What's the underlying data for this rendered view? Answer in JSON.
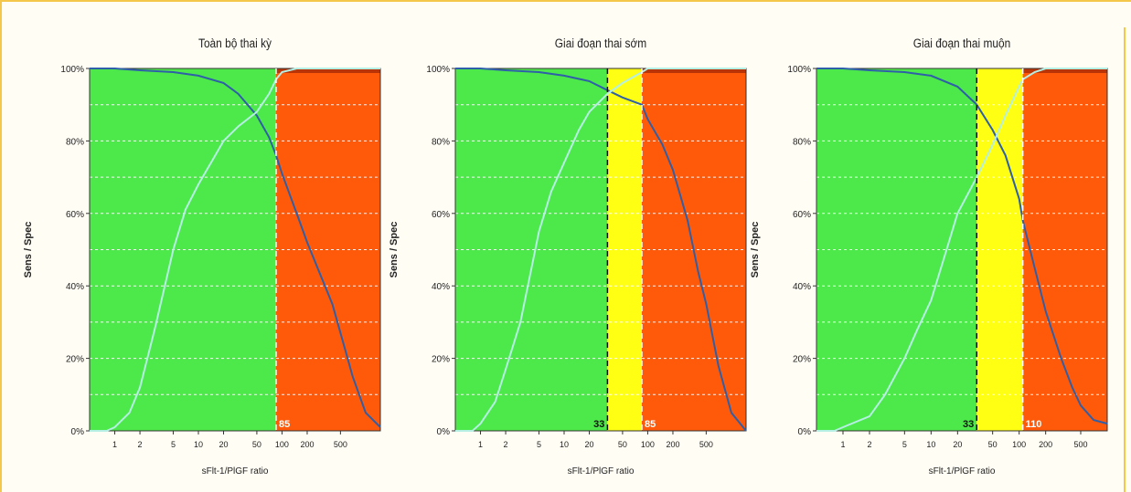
{
  "chart_data": [
    {
      "type": "line",
      "title": "Toàn bộ thai kỳ",
      "xlabel": "sFlt-1/PlGF ratio",
      "ylabel": "Sens / Spec",
      "x_scale": "log",
      "xlim": [
        0.5,
        1500
      ],
      "ylim": [
        0,
        100
      ],
      "x_ticks": [
        "1",
        "2",
        "5",
        "10",
        "20",
        "50",
        "100",
        "200",
        "500"
      ],
      "y_ticks": [
        "0%",
        "20%",
        "40%",
        "60%",
        "80%",
        "100%"
      ],
      "grid": true,
      "cutoffs": [
        {
          "value": 85,
          "label": "85"
        }
      ],
      "zones": [
        {
          "from": 0.5,
          "to": 85,
          "color": "#4de84a"
        },
        {
          "from": 85,
          "to": 1500,
          "color": "#ff5a0a"
        }
      ],
      "series": [
        {
          "color": "#2f5fa8",
          "x": [
            0.5,
            1,
            2,
            5,
            10,
            20,
            30,
            50,
            70,
            85,
            100,
            150,
            200,
            300,
            400,
            500,
            700,
            1000,
            1500
          ],
          "y": [
            100,
            100,
            99.5,
            99,
            98,
            96,
            93,
            87,
            81,
            76,
            71,
            60,
            52,
            42,
            35,
            27,
            15,
            5,
            1
          ]
        },
        {
          "color": "#b5efe4",
          "x": [
            0.5,
            0.8,
            1,
            1.5,
            2,
            3,
            5,
            7,
            10,
            15,
            20,
            30,
            50,
            70,
            85,
            100,
            150,
            200,
            500,
            1500
          ],
          "y": [
            0,
            0,
            1,
            5,
            12,
            28,
            50,
            61,
            68,
            75,
            80,
            84,
            88,
            93,
            97,
            99,
            100,
            100,
            100,
            100
          ]
        }
      ]
    },
    {
      "type": "line",
      "title": "Giai đoạn thai sớm",
      "xlabel": "sFlt-1/PlGF ratio",
      "ylabel": "Sens / Spec",
      "x_scale": "log",
      "xlim": [
        0.5,
        1500
      ],
      "ylim": [
        0,
        100
      ],
      "x_ticks": [
        "1",
        "2",
        "5",
        "10",
        "20",
        "50",
        "100",
        "200",
        "500"
      ],
      "y_ticks": [
        "0%",
        "20%",
        "40%",
        "60%",
        "80%",
        "100%"
      ],
      "grid": true,
      "cutoffs": [
        {
          "value": 33,
          "label": "33"
        },
        {
          "value": 85,
          "label": "85"
        }
      ],
      "zones": [
        {
          "from": 0.5,
          "to": 33,
          "color": "#4de84a"
        },
        {
          "from": 33,
          "to": 85,
          "color": "#ffff14"
        },
        {
          "from": 85,
          "to": 1500,
          "color": "#ff5a0a"
        }
      ],
      "series": [
        {
          "color": "#2f5fa8",
          "x": [
            0.5,
            1,
            2,
            5,
            10,
            20,
            33,
            50,
            85,
            100,
            150,
            200,
            300,
            400,
            500,
            700,
            1000,
            1500
          ],
          "y": [
            100,
            100,
            99.5,
            99,
            98,
            96.5,
            94,
            92,
            90,
            86,
            79,
            72,
            58,
            44,
            35,
            18,
            5,
            0
          ]
        },
        {
          "color": "#b5efe4",
          "x": [
            0.5,
            0.8,
            1,
            1.5,
            2,
            3,
            5,
            7,
            10,
            15,
            20,
            33,
            50,
            85,
            100,
            150,
            200,
            1500
          ],
          "y": [
            0,
            0,
            2,
            8,
            17,
            30,
            55,
            66,
            74,
            83,
            88,
            93,
            96,
            99,
            100,
            100,
            100,
            100
          ]
        }
      ]
    },
    {
      "type": "line",
      "title": "Giai đoạn thai muộn",
      "xlabel": "sFlt-1/PlGF ratio",
      "ylabel": "Sens / Spec",
      "x_scale": "log",
      "xlim": [
        0.5,
        1000
      ],
      "ylim": [
        0,
        100
      ],
      "x_ticks": [
        "1",
        "2",
        "5",
        "10",
        "20",
        "50",
        "100",
        "200",
        "500"
      ],
      "y_ticks": [
        "0%",
        "20%",
        "40%",
        "60%",
        "80%",
        "100%"
      ],
      "grid": true,
      "cutoffs": [
        {
          "value": 33,
          "label": "33"
        },
        {
          "value": 110,
          "label": "110"
        }
      ],
      "zones": [
        {
          "from": 0.5,
          "to": 33,
          "color": "#4de84a"
        },
        {
          "from": 33,
          "to": 110,
          "color": "#ffff14"
        },
        {
          "from": 110,
          "to": 1000,
          "color": "#ff5a0a"
        }
      ],
      "series": [
        {
          "color": "#2f5fa8",
          "x": [
            0.5,
            1,
            2,
            5,
            10,
            20,
            33,
            50,
            70,
            100,
            110,
            150,
            200,
            300,
            400,
            500,
            700,
            1000
          ],
          "y": [
            100,
            100,
            99.5,
            99,
            98,
            95,
            90,
            83,
            76,
            64,
            58,
            45,
            33,
            20,
            12,
            7,
            3,
            2
          ]
        },
        {
          "color": "#b5efe4",
          "x": [
            0.5,
            0.8,
            1,
            2,
            3,
            5,
            7,
            10,
            15,
            20,
            33,
            50,
            70,
            100,
            110,
            150,
            200,
            1000
          ],
          "y": [
            0,
            0,
            1,
            4,
            10,
            20,
            28,
            36,
            50,
            60,
            70,
            79,
            87,
            95,
            97,
            99,
            100,
            100
          ]
        }
      ]
    }
  ]
}
